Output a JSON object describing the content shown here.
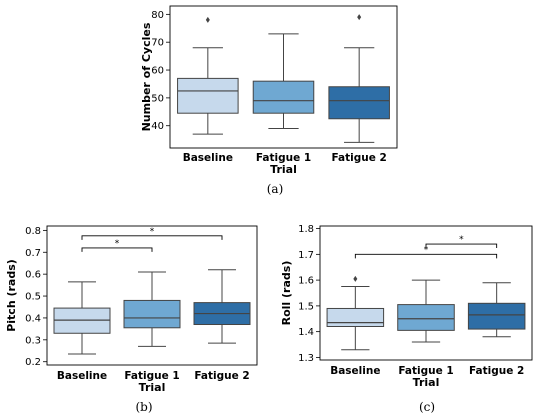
{
  "colors": {
    "baseline": "#c6d9ec",
    "fatigue1": "#6fa8d2",
    "fatigue2": "#2e6ea6",
    "line": "#444444",
    "frame": "#000000"
  },
  "chart_data": [
    {
      "type": "box",
      "caption": "(a)",
      "xlabel": "Trial",
      "ylabel": "Number of Cycles",
      "ylim": [
        32,
        83
      ],
      "yticks": [
        40,
        50,
        60,
        70,
        80
      ],
      "categories": [
        "Baseline",
        "Fatigue 1",
        "Fatigue 2"
      ],
      "boxes": [
        {
          "whisker_low": 37,
          "q1": 44.5,
          "median": 52.5,
          "q3": 57,
          "whisker_high": 68,
          "outliers": [
            78
          ]
        },
        {
          "whisker_low": 39,
          "q1": 44.5,
          "median": 49,
          "q3": 56,
          "whisker_high": 73,
          "outliers": []
        },
        {
          "whisker_low": 34,
          "q1": 42.5,
          "median": 49,
          "q3": 54,
          "whisker_high": 68,
          "outliers": [
            79
          ]
        }
      ],
      "significance": []
    },
    {
      "type": "box",
      "caption": "(b)",
      "xlabel": "Trial",
      "ylabel": "Pitch (rads)",
      "ylim": [
        0.185,
        0.82
      ],
      "yticks": [
        0.2,
        0.3,
        0.4,
        0.5,
        0.6,
        0.7,
        0.8
      ],
      "categories": [
        "Baseline",
        "Fatigue 1",
        "Fatigue 2"
      ],
      "boxes": [
        {
          "whisker_low": 0.235,
          "q1": 0.33,
          "median": 0.39,
          "q3": 0.445,
          "whisker_high": 0.565,
          "outliers": []
        },
        {
          "whisker_low": 0.27,
          "q1": 0.355,
          "median": 0.4,
          "q3": 0.48,
          "whisker_high": 0.61,
          "outliers": []
        },
        {
          "whisker_low": 0.285,
          "q1": 0.37,
          "median": 0.42,
          "q3": 0.47,
          "whisker_high": 0.62,
          "outliers": []
        }
      ],
      "significance": [
        {
          "from": 0,
          "to": 1,
          "y": 0.72,
          "label": "*"
        },
        {
          "from": 0,
          "to": 2,
          "y": 0.775,
          "label": "*"
        }
      ]
    },
    {
      "type": "box",
      "caption": "(c)",
      "xlabel": "Trial",
      "ylabel": "Roll (rads)",
      "ylim": [
        1.29,
        1.81
      ],
      "yticks": [
        1.3,
        1.4,
        1.5,
        1.6,
        1.7,
        1.8
      ],
      "categories": [
        "Baseline",
        "Fatigue 1",
        "Fatigue 2"
      ],
      "boxes": [
        {
          "whisker_low": 1.33,
          "q1": 1.42,
          "median": 1.435,
          "q3": 1.49,
          "whisker_high": 1.575,
          "outliers": [
            1.605
          ]
        },
        {
          "whisker_low": 1.36,
          "q1": 1.405,
          "median": 1.45,
          "q3": 1.505,
          "whisker_high": 1.6,
          "outliers": []
        },
        {
          "whisker_low": 1.38,
          "q1": 1.41,
          "median": 1.465,
          "q3": 1.51,
          "whisker_high": 1.59,
          "outliers": []
        }
      ],
      "significance": [
        {
          "from": 0,
          "to": 2,
          "y": 1.7,
          "label": "*"
        },
        {
          "from": 1,
          "to": 2,
          "y": 1.74,
          "label": "*"
        }
      ]
    }
  ]
}
